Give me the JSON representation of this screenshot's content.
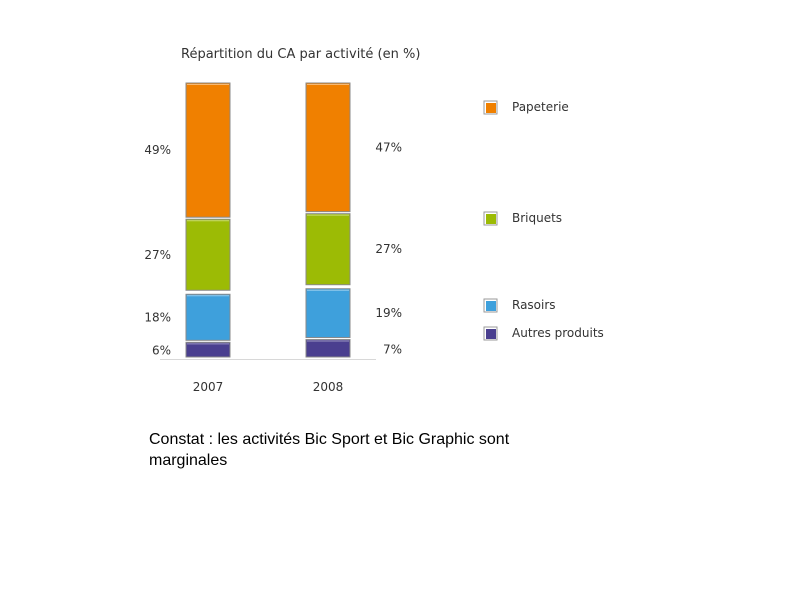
{
  "chart_data": {
    "type": "bar",
    "stacked": true,
    "title": "Répartition du CA par activité (en %)",
    "categories": [
      "2007",
      "2008"
    ],
    "series": [
      {
        "name": "Autres produits",
        "values": [
          6,
          7
        ],
        "labels": [
          "6%",
          "7%"
        ],
        "color": "#4a3f8f"
      },
      {
        "name": "Rasoirs",
        "values": [
          18,
          19
        ],
        "labels": [
          "18%",
          "19%"
        ],
        "color": "#3ea0dc"
      },
      {
        "name": "Briquets",
        "values": [
          27,
          27
        ],
        "labels": [
          "27%",
          "27%"
        ],
        "color": "#9cbb05"
      },
      {
        "name": "Papeterie",
        "values": [
          49,
          47
        ],
        "labels": [
          "49%",
          "47%"
        ],
        "color": "#f08000"
      }
    ],
    "legend_order": [
      "Papeterie",
      "Briquets",
      "Rasoirs",
      "Autres produits"
    ],
    "legend_position": "right",
    "grid": false
  },
  "caption": "Constat : les activités Bic Sport et Bic Graphic sont marginales"
}
